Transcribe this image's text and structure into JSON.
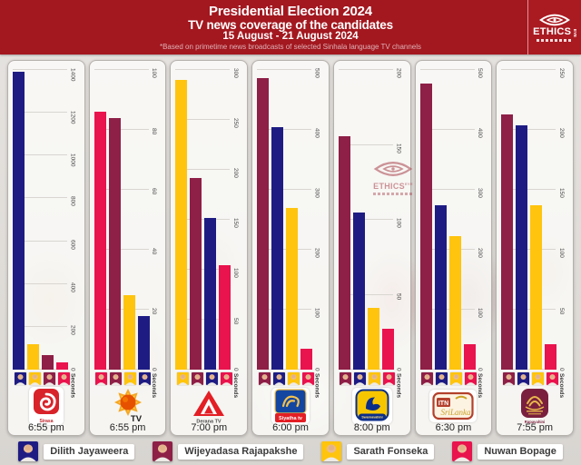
{
  "header": {
    "title_line1": "Presidential Election 2024",
    "title_line2": "TV news coverage of the candidates",
    "date_range": "15 August - 21 August 2024",
    "footnote": "*Based on primetime news broadcasts of selected Sinhala language TV channels",
    "background_color": "#A3171F",
    "logo": {
      "text": "ETHICS",
      "sub": "EYE"
    }
  },
  "watermark": {
    "text": "ETHICS",
    "sub": "EYE"
  },
  "candidates": [
    {
      "id": "dilith",
      "name": "Dilith Jayaweera",
      "color": "#1E1C83"
    },
    {
      "id": "wijeyadasa",
      "name": "Wijeyadasa Rajapakshe",
      "color": "#8E1F46"
    },
    {
      "id": "sarath",
      "name": "Sarath Fonseka",
      "color": "#FFC40D"
    },
    {
      "id": "nuwan",
      "name": "Nuwan Bopage",
      "color": "#E9134D"
    }
  ],
  "chart_data": [
    {
      "type": "bar",
      "channel": "Sirasa TV",
      "time": "6:55 pm",
      "ylabel": "Seconds",
      "ylim": [
        0,
        1400
      ],
      "tick_step": 200,
      "grid": true,
      "logo_caption": "Sirasa",
      "bars": [
        {
          "candidate": "dilith",
          "value": 1390
        },
        {
          "candidate": "sarath",
          "value": 120
        },
        {
          "candidate": "wijeyadasa",
          "value": 70
        },
        {
          "candidate": "nuwan",
          "value": 35
        }
      ]
    },
    {
      "type": "bar",
      "channel": "Hiru TV",
      "time": "6:55 pm",
      "ylabel": "Seconds",
      "ylim": [
        0,
        100
      ],
      "tick_step": 20,
      "grid": true,
      "logo_caption": "TV",
      "bars": [
        {
          "candidate": "nuwan",
          "value": 86
        },
        {
          "candidate": "wijeyadasa",
          "value": 84
        },
        {
          "candidate": "sarath",
          "value": 25
        },
        {
          "candidate": "dilith",
          "value": 18
        }
      ]
    },
    {
      "type": "bar",
      "channel": "TV Derana",
      "time": "7:00 pm",
      "ylabel": "Seconds",
      "ylim": [
        0,
        300
      ],
      "tick_step": 50,
      "grid": true,
      "logo_caption": "Derana TV",
      "bars": [
        {
          "candidate": "sarath",
          "value": 290
        },
        {
          "candidate": "wijeyadasa",
          "value": 192
        },
        {
          "candidate": "dilith",
          "value": 152
        },
        {
          "candidate": "nuwan",
          "value": 105
        }
      ]
    },
    {
      "type": "bar",
      "channel": "Siyatha TV",
      "time": "6:00 pm",
      "ylabel": "Seconds",
      "ylim": [
        0,
        500
      ],
      "tick_step": 100,
      "grid": true,
      "logo_caption": "Siyatha tv",
      "bars": [
        {
          "candidate": "wijeyadasa",
          "value": 487
        },
        {
          "candidate": "dilith",
          "value": 405
        },
        {
          "candidate": "sarath",
          "value": 270
        },
        {
          "candidate": "nuwan",
          "value": 35
        }
      ]
    },
    {
      "type": "bar",
      "channel": "Swarnavahini",
      "time": "8:00 pm",
      "ylabel": "Seconds",
      "ylim": [
        0,
        200
      ],
      "tick_step": 50,
      "grid": true,
      "logo_caption": "Swarnavahini",
      "bars": [
        {
          "candidate": "wijeyadasa",
          "value": 156
        },
        {
          "candidate": "dilith",
          "value": 105
        },
        {
          "candidate": "sarath",
          "value": 41
        },
        {
          "candidate": "nuwan",
          "value": 27
        }
      ]
    },
    {
      "type": "bar",
      "channel": "ITN Sri Lanka",
      "time": "6:30 pm",
      "ylabel": "Seconds",
      "ylim": [
        0,
        500
      ],
      "tick_step": 100,
      "grid": true,
      "logo_caption": "SriLanka",
      "logo_box": "ITN",
      "bars": [
        {
          "candidate": "wijeyadasa",
          "value": 478
        },
        {
          "candidate": "dilith",
          "value": 275
        },
        {
          "candidate": "sarath",
          "value": 222
        },
        {
          "candidate": "nuwan",
          "value": 42
        }
      ]
    },
    {
      "type": "bar",
      "channel": "Rupavahini",
      "time": "7:55 pm",
      "ylabel": "Seconds",
      "ylim": [
        0,
        250
      ],
      "tick_step": 50,
      "grid": true,
      "logo_caption": "Rupavahini",
      "bars": [
        {
          "candidate": "wijeyadasa",
          "value": 213
        },
        {
          "candidate": "dilith",
          "value": 204
        },
        {
          "candidate": "sarath",
          "value": 137
        },
        {
          "candidate": "nuwan",
          "value": 21
        }
      ]
    }
  ]
}
